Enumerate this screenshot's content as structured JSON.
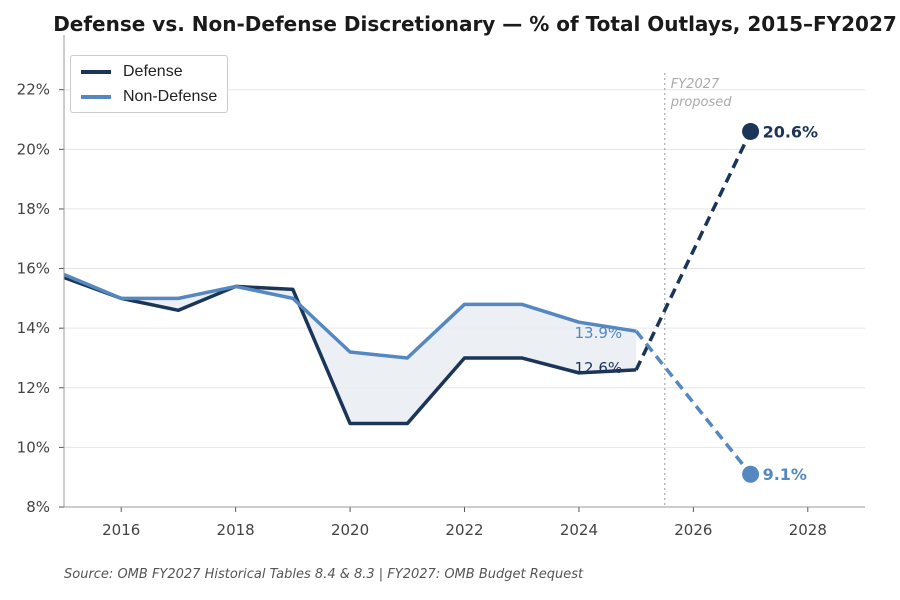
{
  "chart_data": {
    "type": "line",
    "title": "Defense vs. Non-Defense Discretionary — % of Total Outlays, 2015–FY2027",
    "xlabel": "",
    "ylabel": "",
    "xlim": [
      2015,
      2029
    ],
    "ylim": [
      8,
      23.5
    ],
    "x_ticks": [
      2016,
      2018,
      2020,
      2022,
      2024,
      2026,
      2028
    ],
    "y_ticks": [
      8,
      10,
      12,
      14,
      16,
      18,
      20,
      22
    ],
    "y_tick_labels": [
      "8%",
      "10%",
      "12%",
      "14%",
      "16%",
      "18%",
      "20%",
      "22%"
    ],
    "grid": "horizontal",
    "legend_position": "top-left",
    "series": [
      {
        "name": "Defense",
        "color": "#1a3558",
        "x": [
          2015,
          2016,
          2017,
          2018,
          2019,
          2020,
          2021,
          2022,
          2023,
          2024,
          2025
        ],
        "values": [
          15.7,
          15.0,
          14.6,
          15.4,
          15.3,
          10.8,
          10.8,
          13.0,
          13.0,
          12.5,
          12.6
        ],
        "projection": {
          "x": [
            2025,
            2027
          ],
          "values": [
            12.6,
            20.6
          ]
        },
        "end_label": "20.6%",
        "inline_label": "12.6%"
      },
      {
        "name": "Non-Defense",
        "color": "#5588c0",
        "x": [
          2015,
          2016,
          2017,
          2018,
          2019,
          2020,
          2021,
          2022,
          2023,
          2024,
          2025
        ],
        "values": [
          15.8,
          15.0,
          15.0,
          15.4,
          15.0,
          13.2,
          13.0,
          14.8,
          14.8,
          14.2,
          13.9
        ],
        "projection": {
          "x": [
            2025,
            2027
          ],
          "values": [
            13.9,
            9.1
          ]
        },
        "end_label": "9.1%",
        "inline_label": "13.9%"
      }
    ],
    "shaded_gap": true,
    "vertical_marker": {
      "x": 2025.5,
      "label_line1": "FY2027",
      "label_line2": "proposed"
    },
    "source": "Source: OMB FY2027 Historical Tables 8.4 & 8.3  |  FY2027: OMB Budget Request"
  }
}
